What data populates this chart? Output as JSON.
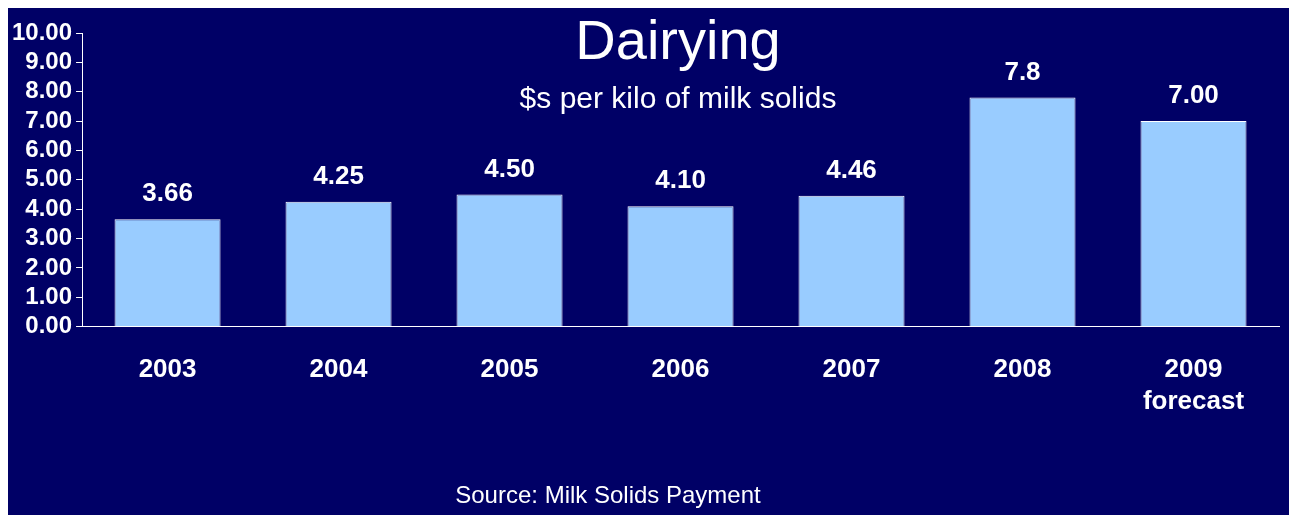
{
  "chart_data": {
    "type": "bar",
    "title": "Dairying",
    "subtitle": "$s per kilo of milk solids",
    "categories": [
      "2003",
      "2004",
      "2005",
      "2006",
      "2007",
      "2008",
      "2009\nforecast"
    ],
    "values": [
      3.66,
      4.25,
      4.5,
      4.1,
      4.46,
      7.8,
      7.0
    ],
    "value_labels": [
      "3.66",
      "4.25",
      "4.50",
      "4.10",
      "4.46",
      "7.8",
      "7.00"
    ],
    "color": "#99ccff",
    "ylim": [
      0,
      10
    ],
    "yticks": [
      {
        "value": 0,
        "label": "0.00"
      },
      {
        "value": 1,
        "label": "1.00"
      },
      {
        "value": 2,
        "label": "2.00"
      },
      {
        "value": 3,
        "label": "3.00"
      },
      {
        "value": 4,
        "label": "4.00"
      },
      {
        "value": 5,
        "label": "5.00"
      },
      {
        "value": 6,
        "label": "6.00"
      },
      {
        "value": 7,
        "label": "7.00"
      },
      {
        "value": 8,
        "label": "8.00"
      },
      {
        "value": 9,
        "label": "9.00"
      },
      {
        "value": 10,
        "label": "10.00"
      }
    ],
    "grid": false,
    "legend": false,
    "annotations": [
      "Source: Milk Solids Payment"
    ]
  }
}
